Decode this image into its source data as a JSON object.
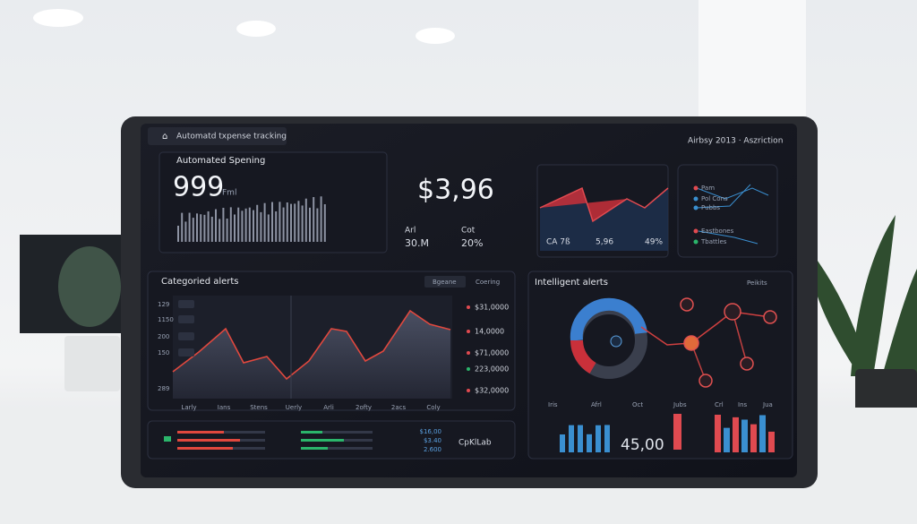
{
  "header": {
    "title": "Automatd txpense tracking",
    "right": "Airbsy 2013 · Aszriction"
  },
  "spending": {
    "title": "Automated Spening",
    "value": "999",
    "unit": "Fml"
  },
  "total": {
    "value": "$3,96",
    "stats": [
      {
        "label": "Arl",
        "value": "30.M"
      },
      {
        "label": "Cot",
        "value": "20%"
      }
    ]
  },
  "mini_chart": {
    "labels": [
      "CA 7ß",
      "5,96",
      "49%"
    ]
  },
  "network": {
    "legend": [
      "Pam",
      "Pol Cons",
      "Pubbs",
      "Eastbones",
      "Tbattles"
    ]
  },
  "categoried": {
    "title": "Categoried alerts",
    "tabs": [
      "Bgeane",
      "Coering"
    ],
    "y_labels": [
      "129",
      "1150",
      "200",
      "150",
      "289"
    ],
    "x_labels": [
      "Larly",
      "Ians",
      "Stens",
      "Uerly",
      "Arli",
      "2ofty",
      "2acs",
      "Coly"
    ],
    "legend": [
      "$31,0000",
      "14,0000",
      "$71,0000",
      "223,0000",
      "$32,0000"
    ]
  },
  "summary": {
    "values": [
      "$16,00",
      "$3.40",
      "2.600"
    ],
    "label": "CpKlLab"
  },
  "intelligent": {
    "title": "Intelligent alerts",
    "action": "Peikits",
    "value": "45,00",
    "labels": [
      "Iris",
      "Afrl",
      "Oct",
      "Jubs",
      "Crl",
      "Ins",
      "Jua"
    ]
  }
}
